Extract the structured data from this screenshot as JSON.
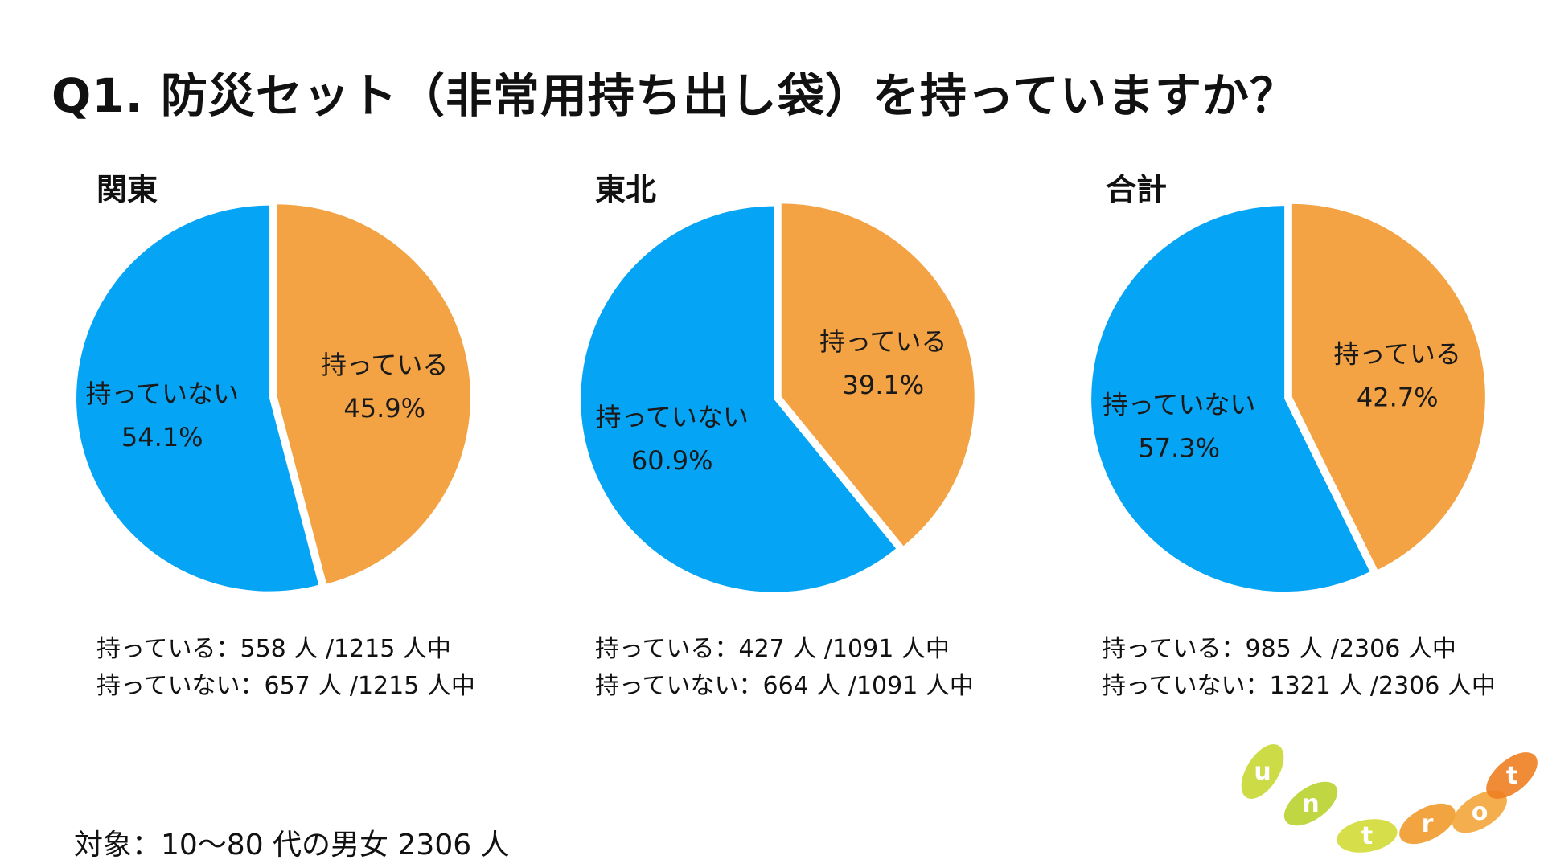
{
  "title": "Q1. 防災セット（非常用持ち出し袋）を持っていますか？",
  "colors": {
    "have": "#F3A343",
    "not_have": "#06A4F4"
  },
  "chart_data": [
    {
      "type": "pie",
      "title": "関東",
      "slices": [
        {
          "label": "持っている",
          "value": 45.9,
          "value_text": "45.9%",
          "color": "#F3A343"
        },
        {
          "label": "持っていない",
          "value": 54.1,
          "value_text": "54.1%",
          "color": "#06A4F4"
        }
      ],
      "counts": [
        "持っている：558 人 /1215 人中",
        "持っていない：657 人 /1215 人中"
      ]
    },
    {
      "type": "pie",
      "title": "東北",
      "slices": [
        {
          "label": "持っている",
          "value": 39.1,
          "value_text": "39.1%",
          "color": "#F3A343"
        },
        {
          "label": "持っていない",
          "value": 60.9,
          "value_text": "60.9%",
          "color": "#06A4F4"
        }
      ],
      "counts": [
        "持っている：427 人 /1091 人中",
        "持っていない：664 人 /1091 人中"
      ]
    },
    {
      "type": "pie",
      "title": "合計",
      "slices": [
        {
          "label": "持っている",
          "value": 42.7,
          "value_text": "42.7%",
          "color": "#F3A343"
        },
        {
          "label": "持っていない",
          "value": 57.3,
          "value_text": "57.3%",
          "color": "#06A4F4"
        }
      ],
      "counts": [
        "持っている：985 人 /2306 人中",
        "持っていない：1321 人 /2306 人中"
      ]
    }
  ],
  "subject": "対象：10〜80 代の男女 2306 人",
  "logo": {
    "letters": [
      "u",
      "n",
      "t",
      "r",
      "o",
      "t"
    ],
    "colors": [
      "#C8D832",
      "#B9D22E",
      "#D2DB36",
      "#F09A2A",
      "#F3A53A",
      "#EE7E22"
    ]
  }
}
